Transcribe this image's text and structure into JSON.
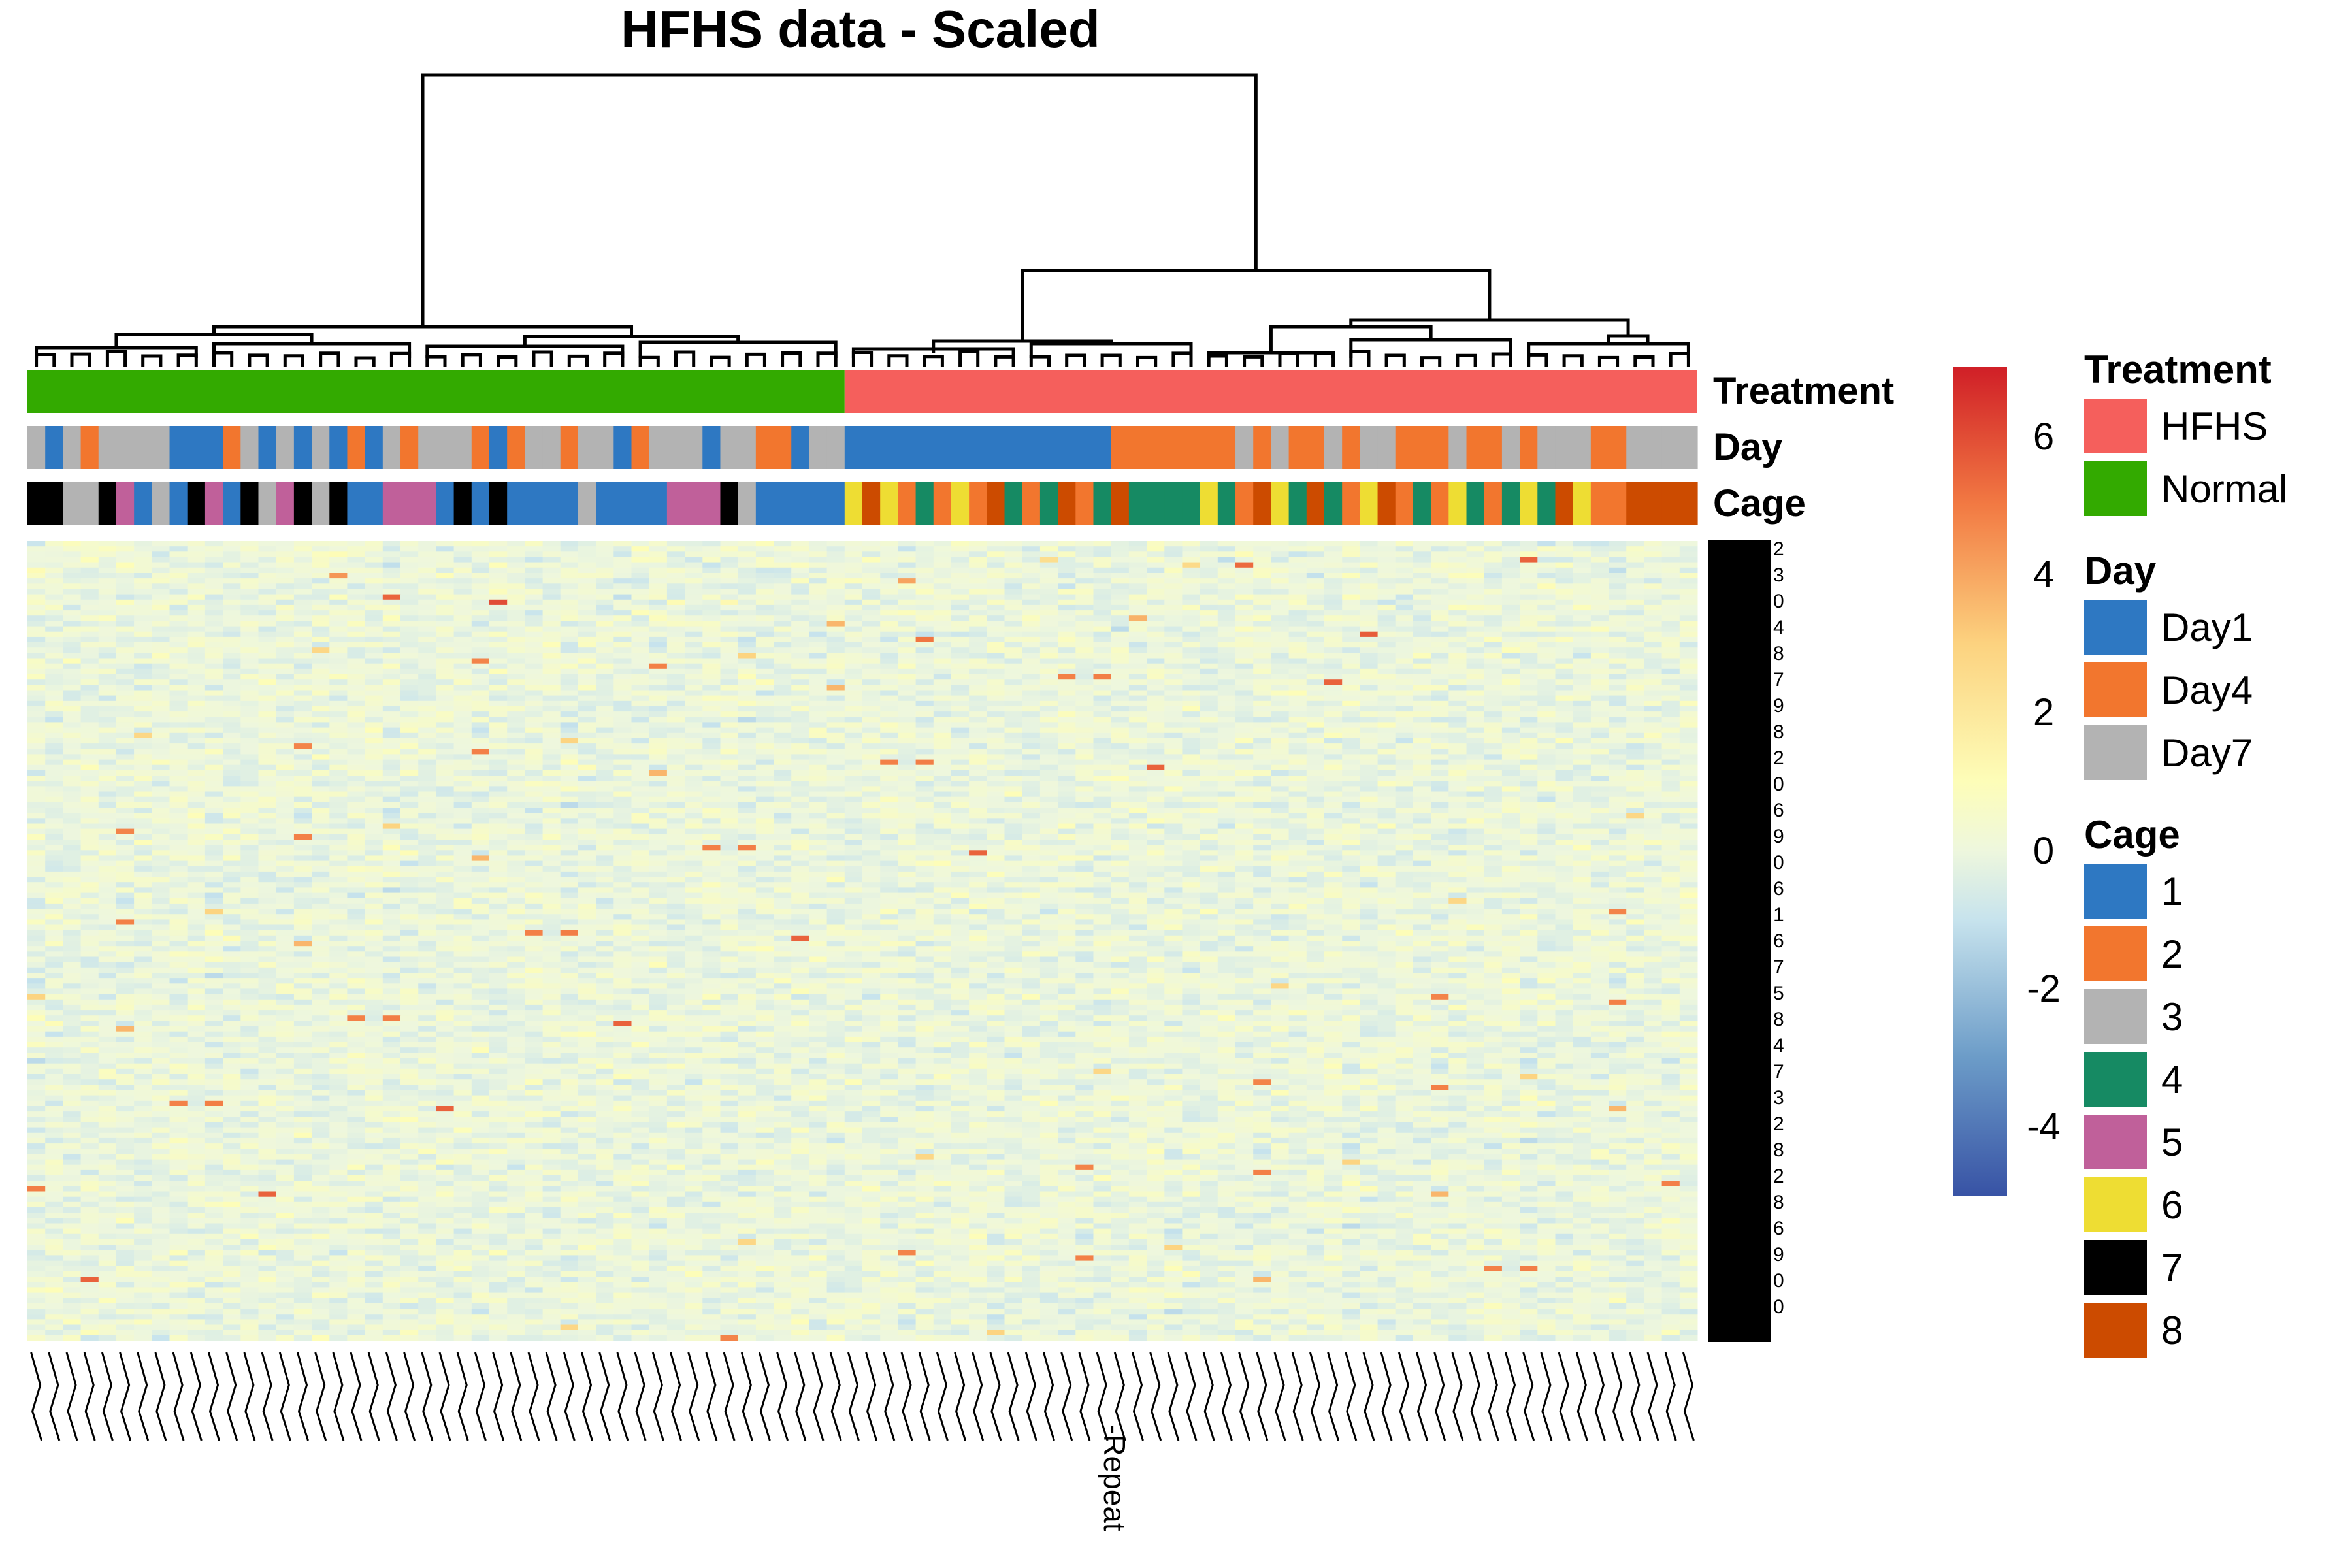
{
  "chart_data": {
    "type": "heatmap",
    "title": "HFHS data - Scaled",
    "n_columns": 94,
    "annotation_tracks": [
      "Treatment",
      "Day",
      "Cage"
    ],
    "treatment_groups": [
      {
        "label": "Normal",
        "color": "#33AA00",
        "columns": 46
      },
      {
        "label": "HFHS",
        "color": "#F55F5C",
        "columns": 48
      }
    ],
    "day_by_column": [
      3,
      1,
      3,
      2,
      3,
      3,
      3,
      3,
      1,
      1,
      1,
      2,
      3,
      1,
      3,
      1,
      3,
      1,
      2,
      1,
      3,
      2,
      3,
      3,
      3,
      2,
      1,
      2,
      3,
      3,
      2,
      3,
      3,
      1,
      2,
      3,
      3,
      3,
      1,
      3,
      3,
      2,
      2,
      1,
      3,
      3,
      1,
      1,
      1,
      1,
      1,
      1,
      1,
      1,
      1,
      1,
      1,
      1,
      1,
      1,
      1,
      2,
      2,
      2,
      2,
      2,
      2,
      2,
      3,
      2,
      3,
      2,
      2,
      3,
      2,
      3,
      3,
      2,
      2,
      2,
      3,
      2,
      2,
      3,
      2,
      3,
      3,
      3,
      2,
      2,
      3,
      3,
      3,
      3
    ],
    "cage_by_column": [
      7,
      7,
      3,
      3,
      7,
      5,
      1,
      3,
      1,
      7,
      5,
      1,
      7,
      3,
      5,
      7,
      3,
      7,
      1,
      1,
      5,
      5,
      5,
      1,
      7,
      1,
      7,
      1,
      1,
      1,
      1,
      3,
      1,
      1,
      1,
      1,
      5,
      5,
      5,
      7,
      3,
      1,
      1,
      1,
      1,
      1,
      6,
      8,
      6,
      2,
      4,
      2,
      6,
      2,
      8,
      4,
      2,
      4,
      8,
      2,
      4,
      8,
      4,
      4,
      4,
      4,
      6,
      4,
      2,
      8,
      6,
      4,
      8,
      4,
      2,
      6,
      8,
      2,
      4,
      2,
      6,
      4,
      2,
      4,
      6,
      4,
      8,
      6,
      2,
      2,
      8,
      8,
      8,
      8
    ],
    "legends": {
      "Treatment": [
        {
          "label": "HFHS",
          "color": "#F55F5C"
        },
        {
          "label": "Normal",
          "color": "#33AA00"
        }
      ],
      "Day": [
        {
          "label": "Day1",
          "color": "#2E78C2"
        },
        {
          "label": "Day4",
          "color": "#F2762E"
        },
        {
          "label": "Day7",
          "color": "#B3B3B3"
        }
      ],
      "Cage": [
        {
          "label": "1",
          "color": "#2E78C2"
        },
        {
          "label": "2",
          "color": "#F2762E"
        },
        {
          "label": "3",
          "color": "#B3B3B3"
        },
        {
          "label": "4",
          "color": "#168A63"
        },
        {
          "label": "5",
          "color": "#C0609A"
        },
        {
          "label": "6",
          "color": "#EEDD33"
        },
        {
          "label": "7",
          "color": "#000000"
        },
        {
          "label": "8",
          "color": "#CC4B00"
        }
      ]
    },
    "color_scale": {
      "range": [
        -5,
        7
      ],
      "ticks": [
        -4,
        -2,
        0,
        2,
        4,
        6
      ],
      "stops": [
        {
          "value": -5,
          "color": "#3853A5"
        },
        {
          "value": -3,
          "color": "#6C9CC8"
        },
        {
          "value": -1,
          "color": "#C7E3ED"
        },
        {
          "value": 0,
          "color": "#EEF7DD"
        },
        {
          "value": 1,
          "color": "#FDFDB8"
        },
        {
          "value": 3,
          "color": "#FCD27F"
        },
        {
          "value": 5,
          "color": "#F27A43"
        },
        {
          "value": 7,
          "color": "#D01F27"
        }
      ]
    },
    "row_labels": [
      "2",
      "3",
      "0",
      "4",
      "8",
      "7",
      "9",
      "8",
      "2",
      "0",
      "6",
      "9",
      "0",
      "6",
      "1",
      "6",
      "7",
      "5",
      "8",
      "4",
      "7",
      "3",
      "2",
      "8",
      "2",
      "8",
      "6",
      "9",
      "0",
      "0"
    ],
    "column_label_annotation": "-Repeat"
  }
}
